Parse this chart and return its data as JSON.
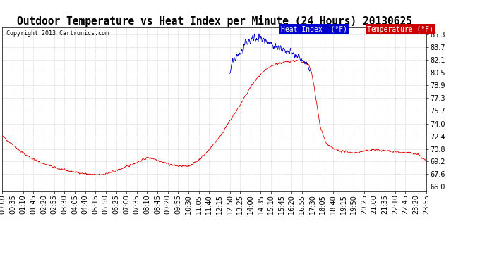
{
  "title": "Outdoor Temperature vs Heat Index per Minute (24 Hours) 20130625",
  "copyright": "Copyright 2013 Cartronics.com",
  "ylabel_ticks": [
    66.0,
    67.6,
    69.2,
    70.8,
    72.4,
    74.0,
    75.7,
    77.3,
    78.9,
    80.5,
    82.1,
    83.7,
    85.3
  ],
  "ylim": [
    65.4,
    86.2
  ],
  "temp_color": "#dd0000",
  "heat_color": "#0000cc",
  "legend_heat_bg": "#0000cc",
  "legend_temp_bg": "#cc0000",
  "bg_color": "#ffffff",
  "grid_color": "#cccccc",
  "x_tick_labels": [
    "00:00",
    "00:35",
    "01:10",
    "01:45",
    "02:20",
    "02:55",
    "03:30",
    "04:05",
    "04:40",
    "05:15",
    "05:50",
    "06:25",
    "07:00",
    "07:35",
    "08:10",
    "08:45",
    "09:20",
    "09:55",
    "10:30",
    "11:05",
    "11:40",
    "12:15",
    "12:50",
    "13:25",
    "14:00",
    "14:35",
    "15:10",
    "15:45",
    "16:20",
    "16:55",
    "17:30",
    "18:05",
    "18:40",
    "19:15",
    "19:50",
    "20:25",
    "21:00",
    "21:35",
    "22:10",
    "22:45",
    "23:20",
    "23:55"
  ],
  "n_minutes": 1440,
  "title_fontsize": 10.5,
  "axis_fontsize": 7,
  "legend_fontsize": 7
}
